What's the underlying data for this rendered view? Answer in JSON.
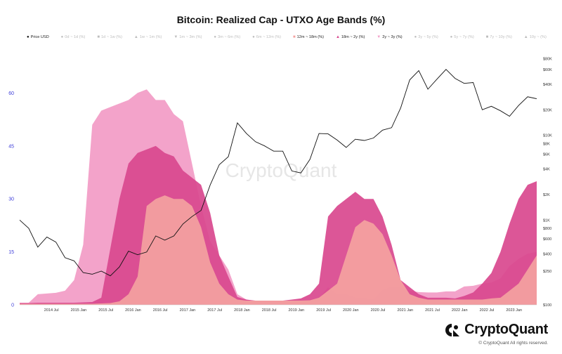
{
  "header": {
    "title": "Bitcoin: Realized Cap - UTXO Age Bands (%)"
  },
  "legend": [
    {
      "label": "Price USD",
      "marker": "●",
      "active": true
    },
    {
      "label": "0d ~ 1d (%)",
      "marker": "●",
      "active": false
    },
    {
      "label": "1d ~ 1w (%)",
      "marker": "■",
      "active": false
    },
    {
      "label": "1w ~ 1m (%)",
      "marker": "▲",
      "active": false
    },
    {
      "label": "1m ~ 3m (%)",
      "marker": "▼",
      "active": false
    },
    {
      "label": "3m ~ 6m (%)",
      "marker": "●",
      "active": false
    },
    {
      "label": "6m ~ 12m (%)",
      "marker": "●",
      "active": false
    },
    {
      "label": "12m ~ 18m (%)",
      "marker": "■",
      "active": true,
      "color": "#f4a2a0"
    },
    {
      "label": "18m ~ 2y (%)",
      "marker": "▲",
      "active": true,
      "color": "#d9488e"
    },
    {
      "label": "2y ~ 3y (%)",
      "marker": "▼",
      "active": true,
      "color": "#f29bc6"
    },
    {
      "label": "3y ~ 5y (%)",
      "marker": "●",
      "active": false
    },
    {
      "label": "5y ~ 7y (%)",
      "marker": "●",
      "active": false
    },
    {
      "label": "7y ~ 10y (%)",
      "marker": "■",
      "active": false
    },
    {
      "label": "10y ~ (%)",
      "marker": "▲",
      "active": false
    }
  ],
  "brand": {
    "name": "CryptoQuant",
    "watermark": "CryptoQuant",
    "copyright": "© CryptoQuant All rights reserved."
  },
  "chart_data": {
    "type": "area",
    "title": "Bitcoin: Realized Cap - UTXO Age Bands (%)",
    "x_ticks": [
      "2014 Jul",
      "2015 Jan",
      "2015 Jul",
      "2016 Jan",
      "2016 Jul",
      "2017 Jan",
      "2017 Jul",
      "2018 Jan",
      "2018 Jul",
      "2019 Jan",
      "2019 Jul",
      "2020 Jan",
      "2020 Jul",
      "2021 Jan",
      "2021 Jul",
      "2022 Jan",
      "2022 Jul",
      "2023 Jan"
    ],
    "x_range": [
      "2013-12",
      "2023-06"
    ],
    "y_left": {
      "ticks": [
        "0",
        "15",
        "30",
        "45",
        "60"
      ],
      "range": [
        0,
        72
      ],
      "unit": "%"
    },
    "y_right": {
      "scale": "log",
      "ticks": [
        "$100",
        "$250",
        "$400",
        "$600",
        "$800",
        "$1K",
        "$2K",
        "$4K",
        "$6K",
        "$8K",
        "$10K",
        "$20K",
        "$40K",
        "$60K",
        "$80K"
      ],
      "range": [
        100,
        100000
      ],
      "unit": "USD"
    },
    "x": [
      "2013-12",
      "2014-02",
      "2014-04",
      "2014-06",
      "2014-08",
      "2014-10",
      "2014-12",
      "2015-02",
      "2015-04",
      "2015-06",
      "2015-08",
      "2015-10",
      "2015-12",
      "2016-02",
      "2016-04",
      "2016-06",
      "2016-08",
      "2016-10",
      "2016-12",
      "2017-02",
      "2017-04",
      "2017-06",
      "2017-08",
      "2017-10",
      "2017-12",
      "2018-02",
      "2018-04",
      "2018-06",
      "2018-08",
      "2018-10",
      "2018-12",
      "2019-02",
      "2019-04",
      "2019-06",
      "2019-08",
      "2019-10",
      "2019-12",
      "2020-02",
      "2020-04",
      "2020-06",
      "2020-08",
      "2020-10",
      "2020-12",
      "2021-02",
      "2021-04",
      "2021-06",
      "2021-08",
      "2021-10",
      "2021-12",
      "2022-02",
      "2022-04",
      "2022-06",
      "2022-08",
      "2022-10",
      "2022-12",
      "2023-02",
      "2023-04",
      "2023-06"
    ],
    "series": [
      {
        "name": "2y ~ 3y (%)",
        "color": "#f29bc6",
        "values": [
          0.6,
          0.6,
          3,
          3.2,
          3.4,
          4,
          7,
          17,
          51,
          55,
          56,
          57,
          58,
          60,
          61,
          58,
          58,
          54,
          52,
          40,
          28,
          18,
          14,
          10,
          3,
          1.5,
          1,
          1,
          1,
          1,
          1,
          1,
          1.5,
          1.8,
          5,
          3,
          3,
          2,
          2,
          1.5,
          4.2,
          5.2,
          5,
          4,
          3.6,
          3.5,
          3.5,
          3.8,
          3.8,
          5.2,
          5.4,
          6,
          6.3,
          7.5,
          11,
          13,
          14.5,
          15
        ]
      },
      {
        "name": "18m ~ 2y (%)",
        "color": "#d9488e",
        "values": [
          0.5,
          0.5,
          0.6,
          0.6,
          0.6,
          0.6,
          0.6,
          0.7,
          0.8,
          2,
          16,
          30,
          40,
          43,
          44,
          45,
          43,
          42,
          38,
          36,
          34,
          26,
          14,
          8,
          2.2,
          1.5,
          1.2,
          1.2,
          1.2,
          1.2,
          1.5,
          1.8,
          3,
          6,
          25,
          28,
          30,
          32,
          30,
          30,
          25,
          17,
          7,
          5,
          3,
          2,
          2,
          2,
          1.8,
          2.5,
          3.5,
          6,
          9,
          15,
          23,
          30,
          34,
          35
        ]
      },
      {
        "name": "12m ~ 18m (%)",
        "color": "#f4a2a0",
        "values": [
          0.3,
          0.3,
          0.3,
          0.3,
          0.3,
          0.3,
          0.3,
          0.3,
          0.3,
          0.4,
          0.5,
          1,
          3,
          8,
          28,
          30,
          31,
          30,
          30,
          28,
          22,
          12,
          6,
          3,
          1.5,
          1.2,
          1.2,
          1.2,
          1.2,
          1.2,
          1.2,
          1.2,
          1.3,
          2,
          4,
          6,
          14,
          22,
          24,
          23,
          20,
          14,
          7,
          3,
          2,
          1.5,
          1.5,
          1.5,
          1.5,
          1.5,
          1.5,
          1.5,
          1.8,
          2,
          4,
          6,
          10,
          14
        ]
      }
    ],
    "price_usd": {
      "x": [
        "2013-12",
        "2014-02",
        "2014-04",
        "2014-06",
        "2014-08",
        "2014-10",
        "2014-12",
        "2015-02",
        "2015-04",
        "2015-06",
        "2015-08",
        "2015-10",
        "2015-12",
        "2016-02",
        "2016-04",
        "2016-06",
        "2016-08",
        "2016-10",
        "2016-12",
        "2017-02",
        "2017-04",
        "2017-06",
        "2017-08",
        "2017-10",
        "2017-12",
        "2018-02",
        "2018-04",
        "2018-06",
        "2018-08",
        "2018-10",
        "2018-12",
        "2019-02",
        "2019-04",
        "2019-06",
        "2019-08",
        "2019-10",
        "2019-12",
        "2020-02",
        "2020-04",
        "2020-06",
        "2020-08",
        "2020-10",
        "2020-12",
        "2021-02",
        "2021-04",
        "2021-06",
        "2021-08",
        "2021-10",
        "2021-12",
        "2022-02",
        "2022-04",
        "2022-06",
        "2022-08",
        "2022-10",
        "2022-12",
        "2023-02",
        "2023-04",
        "2023-06"
      ],
      "values": [
        1000,
        800,
        480,
        630,
        550,
        360,
        330,
        240,
        230,
        250,
        220,
        280,
        430,
        390,
        420,
        650,
        580,
        650,
        900,
        1100,
        1300,
        2600,
        4500,
        5600,
        14000,
        10500,
        8400,
        7500,
        6500,
        6500,
        3800,
        3600,
        5200,
        10500,
        10400,
        8800,
        7200,
        9000,
        8700,
        9300,
        11500,
        12300,
        21000,
        45000,
        58000,
        35000,
        46000,
        60000,
        47000,
        41000,
        42000,
        20000,
        22000,
        19500,
        16800,
        22500,
        28500,
        27000
      ]
    }
  }
}
